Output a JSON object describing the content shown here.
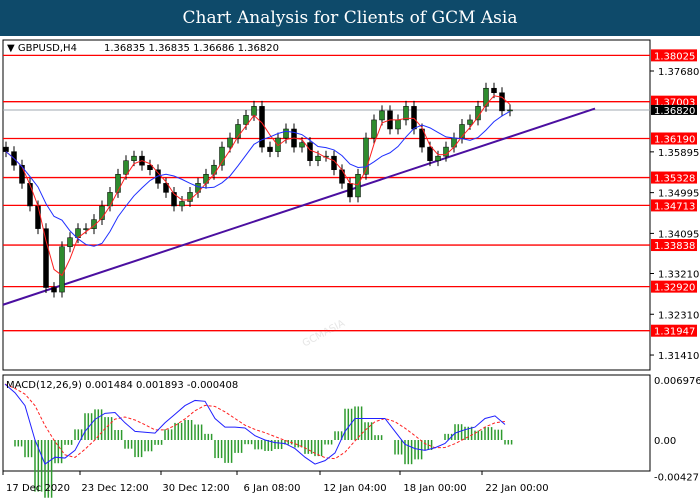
{
  "header": {
    "title": "Chart Analysis for Clients of GCM Asia"
  },
  "watermark": "GCMASIA",
  "chart_data": [
    {
      "type": "candlestick",
      "symbol_label": "GBPUSD,H4",
      "ohlc_label": "1.36835 1.36835 1.36686 1.36820",
      "current_price": "1.36820",
      "y_ticks": [
        "1.37680",
        "1.35895",
        "1.34995",
        "1.34095",
        "1.33210",
        "1.32310",
        "1.31410"
      ],
      "ylim": [
        1.31,
        1.385
      ],
      "levels": [
        "1.38025",
        "1.37003",
        "1.36190",
        "1.35328",
        "1.34713",
        "1.33838",
        "1.32920",
        "1.31947"
      ],
      "closes": [
        1.359,
        1.356,
        1.352,
        1.347,
        1.342,
        1.329,
        1.328,
        1.338,
        1.34,
        1.342,
        1.342,
        1.344,
        1.347,
        1.35,
        1.354,
        1.357,
        1.358,
        1.356,
        1.355,
        1.352,
        1.35,
        1.347,
        1.348,
        1.35,
        1.352,
        1.354,
        1.356,
        1.36,
        1.362,
        1.365,
        1.367,
        1.369,
        1.36,
        1.359,
        1.362,
        1.364,
        1.36,
        1.361,
        1.357,
        1.358,
        1.358,
        1.355,
        1.352,
        1.349,
        1.354,
        1.362,
        1.366,
        1.368,
        1.364,
        1.366,
        1.369,
        1.364,
        1.36,
        1.357,
        1.358,
        1.36,
        1.362,
        1.365,
        1.366,
        1.369,
        1.373,
        1.372,
        1.368,
        1.3682
      ],
      "trendline": [
        [
          0,
          1.3252
        ],
        [
          1,
          1.3685
        ]
      ],
      "colors": {
        "levels": "#ff0000",
        "trendline": "#4b0fa0",
        "up": "#2e8b2e",
        "down": "#000000",
        "ma_fast": "#ff2020",
        "ma_slow": "#2030ff"
      }
    },
    {
      "type": "line",
      "label": "MACD(12,26,9) 0.001484 0.001893 -0.000408",
      "y_ticks": [
        "0.006976",
        "0.00",
        "-0.004271"
      ],
      "ylim": [
        -0.004271,
        0.006976
      ],
      "macd": [
        0.0065,
        0.0055,
        0.004,
        0.0,
        -0.0028,
        -0.002,
        -0.0021,
        -0.0012,
        0.001,
        0.0024,
        0.0031,
        0.0032,
        0.002,
        0.001,
        0.0009,
        0.0008,
        0.002,
        0.003,
        0.004,
        0.0046,
        0.0045,
        0.0025,
        0.0015,
        0.0015,
        0.0014,
        0.0005,
        0.0,
        -0.0003,
        -0.0004,
        -0.001,
        -0.002,
        -0.0028,
        -0.0024,
        -0.0015,
        0.001,
        0.0025,
        0.0025,
        0.0025,
        0.0025,
        0.001,
        -0.0005,
        -0.001,
        -0.0012,
        -0.0009,
        -0.0004,
        0.0008,
        0.0012,
        0.0015,
        0.0025,
        0.0028,
        0.0018
      ],
      "colors": {
        "macd": "#2020ff",
        "signal": "#ff2020",
        "histogram": "#2e9a2e"
      }
    }
  ],
  "x_ticks": [
    "17 Dec 2020",
    "23 Dec 12:00",
    "30 Dec 12:00",
    "6 Jan 08:00",
    "12 Jan 04:00",
    "18 Jan 00:00",
    "22 Jan 00:00"
  ]
}
